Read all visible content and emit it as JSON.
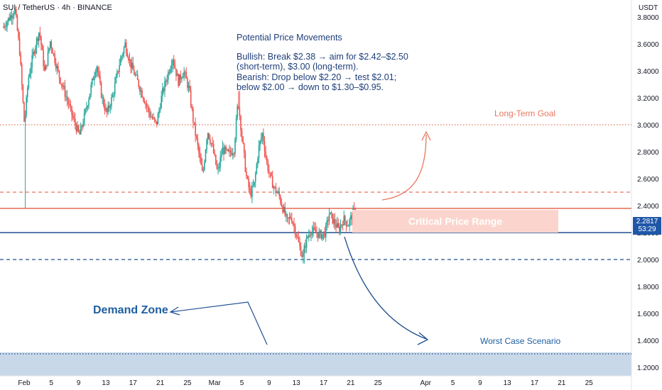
{
  "header": {
    "title": "SUI / TetherUS · 4h · BINANCE"
  },
  "axis": {
    "unit": "USDT",
    "current_price": "2.2817",
    "countdown": "53:29"
  },
  "annotations": {
    "movements_title": "Potential Price Movements",
    "movements_lines": [
      "Bullish: Break $2.38 → aim for $2.42–$2.50",
      "(short-term), $3.00 (long-term).",
      "Bearish: Drop below $2.20 → test $2.01;",
      "below $2.00 → down to $1.30–$0.95."
    ],
    "long_term_goal": "Long-Term Goal",
    "critical_range": "Critical Price Range",
    "demand_zone": "Demand Zone",
    "worst_case": "Worst Case Scenario"
  },
  "colors": {
    "up": "#26a69a",
    "down": "#ef5350",
    "salmon": "#e8765f",
    "navy": "#1f4f8f",
    "demand_fill": "#c8d8e8"
  },
  "chart_data": {
    "type": "candlestick",
    "symbol": "SUI / TetherUS",
    "timeframe": "4h",
    "exchange": "BINANCE",
    "y_ticks": [
      1.2,
      1.4,
      1.6,
      1.8,
      2.0,
      2.2,
      2.4,
      2.6,
      2.8,
      3.0,
      3.2,
      3.4,
      3.6,
      3.8
    ],
    "y_tick_labels": [
      "1.2000",
      "1.4000",
      "1.6000",
      "1.8000",
      "2.0000",
      "2.2000",
      "2.4000",
      "2.6000",
      "2.8000",
      "3.0000",
      "3.2000",
      "3.4000",
      "3.6000",
      "3.8000"
    ],
    "ylim": [
      1.13,
      3.9
    ],
    "x_ticks": [
      {
        "label": "Feb",
        "day": 0
      },
      {
        "label": "5",
        "day": 4
      },
      {
        "label": "9",
        "day": 8
      },
      {
        "label": "13",
        "day": 12
      },
      {
        "label": "17",
        "day": 16
      },
      {
        "label": "21",
        "day": 20
      },
      {
        "label": "25",
        "day": 24
      },
      {
        "label": "Mar",
        "day": 28
      },
      {
        "label": "5",
        "day": 32
      },
      {
        "label": "9",
        "day": 36
      },
      {
        "label": "13",
        "day": 40
      },
      {
        "label": "17",
        "day": 44
      },
      {
        "label": "21",
        "day": 48
      },
      {
        "label": "25",
        "day": 52
      },
      {
        "label": "Apr",
        "day": 59
      },
      {
        "label": "5",
        "day": 63
      },
      {
        "label": "9",
        "day": 67
      },
      {
        "label": "13",
        "day": 71
      },
      {
        "label": "17",
        "day": 75
      },
      {
        "label": "21",
        "day": 79
      },
      {
        "label": "25",
        "day": 83
      }
    ],
    "price_path": [
      [
        -3,
        3.72
      ],
      [
        -2.2,
        3.78
      ],
      [
        -1.2,
        3.86
      ],
      [
        -0.5,
        3.55
      ],
      [
        0.2,
        3.0
      ],
      [
        0.8,
        3.35
      ],
      [
        1.6,
        3.55
      ],
      [
        2.4,
        3.7
      ],
      [
        3.2,
        3.38
      ],
      [
        4,
        3.62
      ],
      [
        5.2,
        3.38
      ],
      [
        6.4,
        3.2
      ],
      [
        7.4,
        3.04
      ],
      [
        8.3,
        2.92
      ],
      [
        9.1,
        3.08
      ],
      [
        10,
        3.28
      ],
      [
        10.8,
        3.45
      ],
      [
        11.6,
        3.2
      ],
      [
        12.3,
        3.08
      ],
      [
        13.2,
        3.22
      ],
      [
        14.2,
        3.46
      ],
      [
        15,
        3.6
      ],
      [
        15.8,
        3.45
      ],
      [
        16.6,
        3.35
      ],
      [
        17.6,
        3.22
      ],
      [
        18.6,
        3.08
      ],
      [
        19.6,
        3.0
      ],
      [
        20.4,
        3.22
      ],
      [
        21.3,
        3.38
      ],
      [
        22,
        3.5
      ],
      [
        22.8,
        3.32
      ],
      [
        23.6,
        3.4
      ],
      [
        24.4,
        3.26
      ],
      [
        25.1,
        3.0
      ],
      [
        25.8,
        2.8
      ],
      [
        26.4,
        2.62
      ],
      [
        27.1,
        2.96
      ],
      [
        27.8,
        2.84
      ],
      [
        28.6,
        2.64
      ],
      [
        29.3,
        2.82
      ],
      [
        30.2,
        2.78
      ],
      [
        31,
        2.82
      ],
      [
        31.6,
        3.18
      ],
      [
        32.2,
        2.9
      ],
      [
        32.8,
        2.62
      ],
      [
        33.4,
        2.48
      ],
      [
        34,
        2.56
      ],
      [
        34.6,
        2.82
      ],
      [
        35.2,
        2.94
      ],
      [
        35.8,
        2.72
      ],
      [
        36.4,
        2.6
      ],
      [
        37,
        2.52
      ],
      [
        37.6,
        2.48
      ],
      [
        38.2,
        2.38
      ],
      [
        38.8,
        2.28
      ],
      [
        39.4,
        2.32
      ],
      [
        40,
        2.22
      ],
      [
        40.6,
        2.1
      ],
      [
        41.1,
        2.02
      ],
      [
        41.6,
        2.14
      ],
      [
        42.3,
        2.22
      ],
      [
        43,
        2.2
      ],
      [
        43.7,
        2.18
      ],
      [
        44.4,
        2.2
      ],
      [
        45,
        2.34
      ],
      [
        45.7,
        2.28
      ],
      [
        46.4,
        2.22
      ],
      [
        47.1,
        2.3
      ],
      [
        47.8,
        2.26
      ],
      [
        48.6,
        2.36
      ],
      [
        49.3,
        2.25
      ],
      [
        49.9,
        2.28
      ]
    ],
    "levels": [
      {
        "price": 3.0,
        "style": "dotted",
        "color": "salmon"
      },
      {
        "price": 2.5,
        "style": "dashed",
        "color": "salmon"
      },
      {
        "price": 2.38,
        "style": "solid",
        "color": "salmon"
      },
      {
        "price": 2.2,
        "style": "solid",
        "color": "navy"
      },
      {
        "price": 2.0,
        "style": "dashed",
        "color": "navy"
      },
      {
        "price": 1.3,
        "style": "dotted",
        "color": "navy"
      }
    ],
    "critical_range": [
      2.2,
      2.38
    ],
    "demand_zone": [
      1.13,
      1.3
    ],
    "last_price": 2.2817,
    "grid": false
  }
}
